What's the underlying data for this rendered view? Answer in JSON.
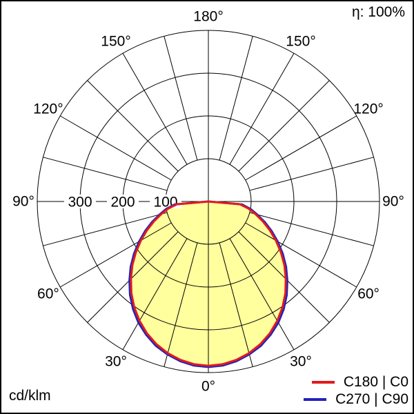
{
  "chart_data": {
    "type": "polar",
    "units": "cd/klm",
    "eta_annotation": "η: 100%",
    "angle_unit": "deg",
    "angle_labels_deg": [
      0,
      30,
      60,
      90,
      120,
      150,
      180
    ],
    "spoke_step_deg": 15,
    "r_gridlines": [
      100,
      200,
      300,
      400
    ],
    "r_tick_labels": [
      300,
      200,
      100
    ],
    "r_axis_max": 400,
    "fill_color": "#ffff9e",
    "gamma_deg": [
      0,
      5,
      10,
      15,
      20,
      25,
      30,
      35,
      40,
      45,
      50,
      55,
      60,
      65,
      70,
      75,
      80,
      85,
      90
    ],
    "series": [
      {
        "name": "C180 | C0",
        "color": "#e01b20",
        "values": [
          384,
          382,
          376,
          367,
          355,
          340,
          322,
          302,
          280,
          256,
          232,
          207,
          182,
          158,
          135,
          114,
          95,
          74,
          0
        ]
      },
      {
        "name": "C270 | C90",
        "color": "#2222bb",
        "values": [
          387,
          385,
          379,
          370,
          359,
          344,
          327,
          307,
          285,
          261,
          237,
          212,
          187,
          163,
          140,
          118,
          100,
          79,
          0
        ]
      }
    ],
    "legend_position": "bottom-right"
  }
}
